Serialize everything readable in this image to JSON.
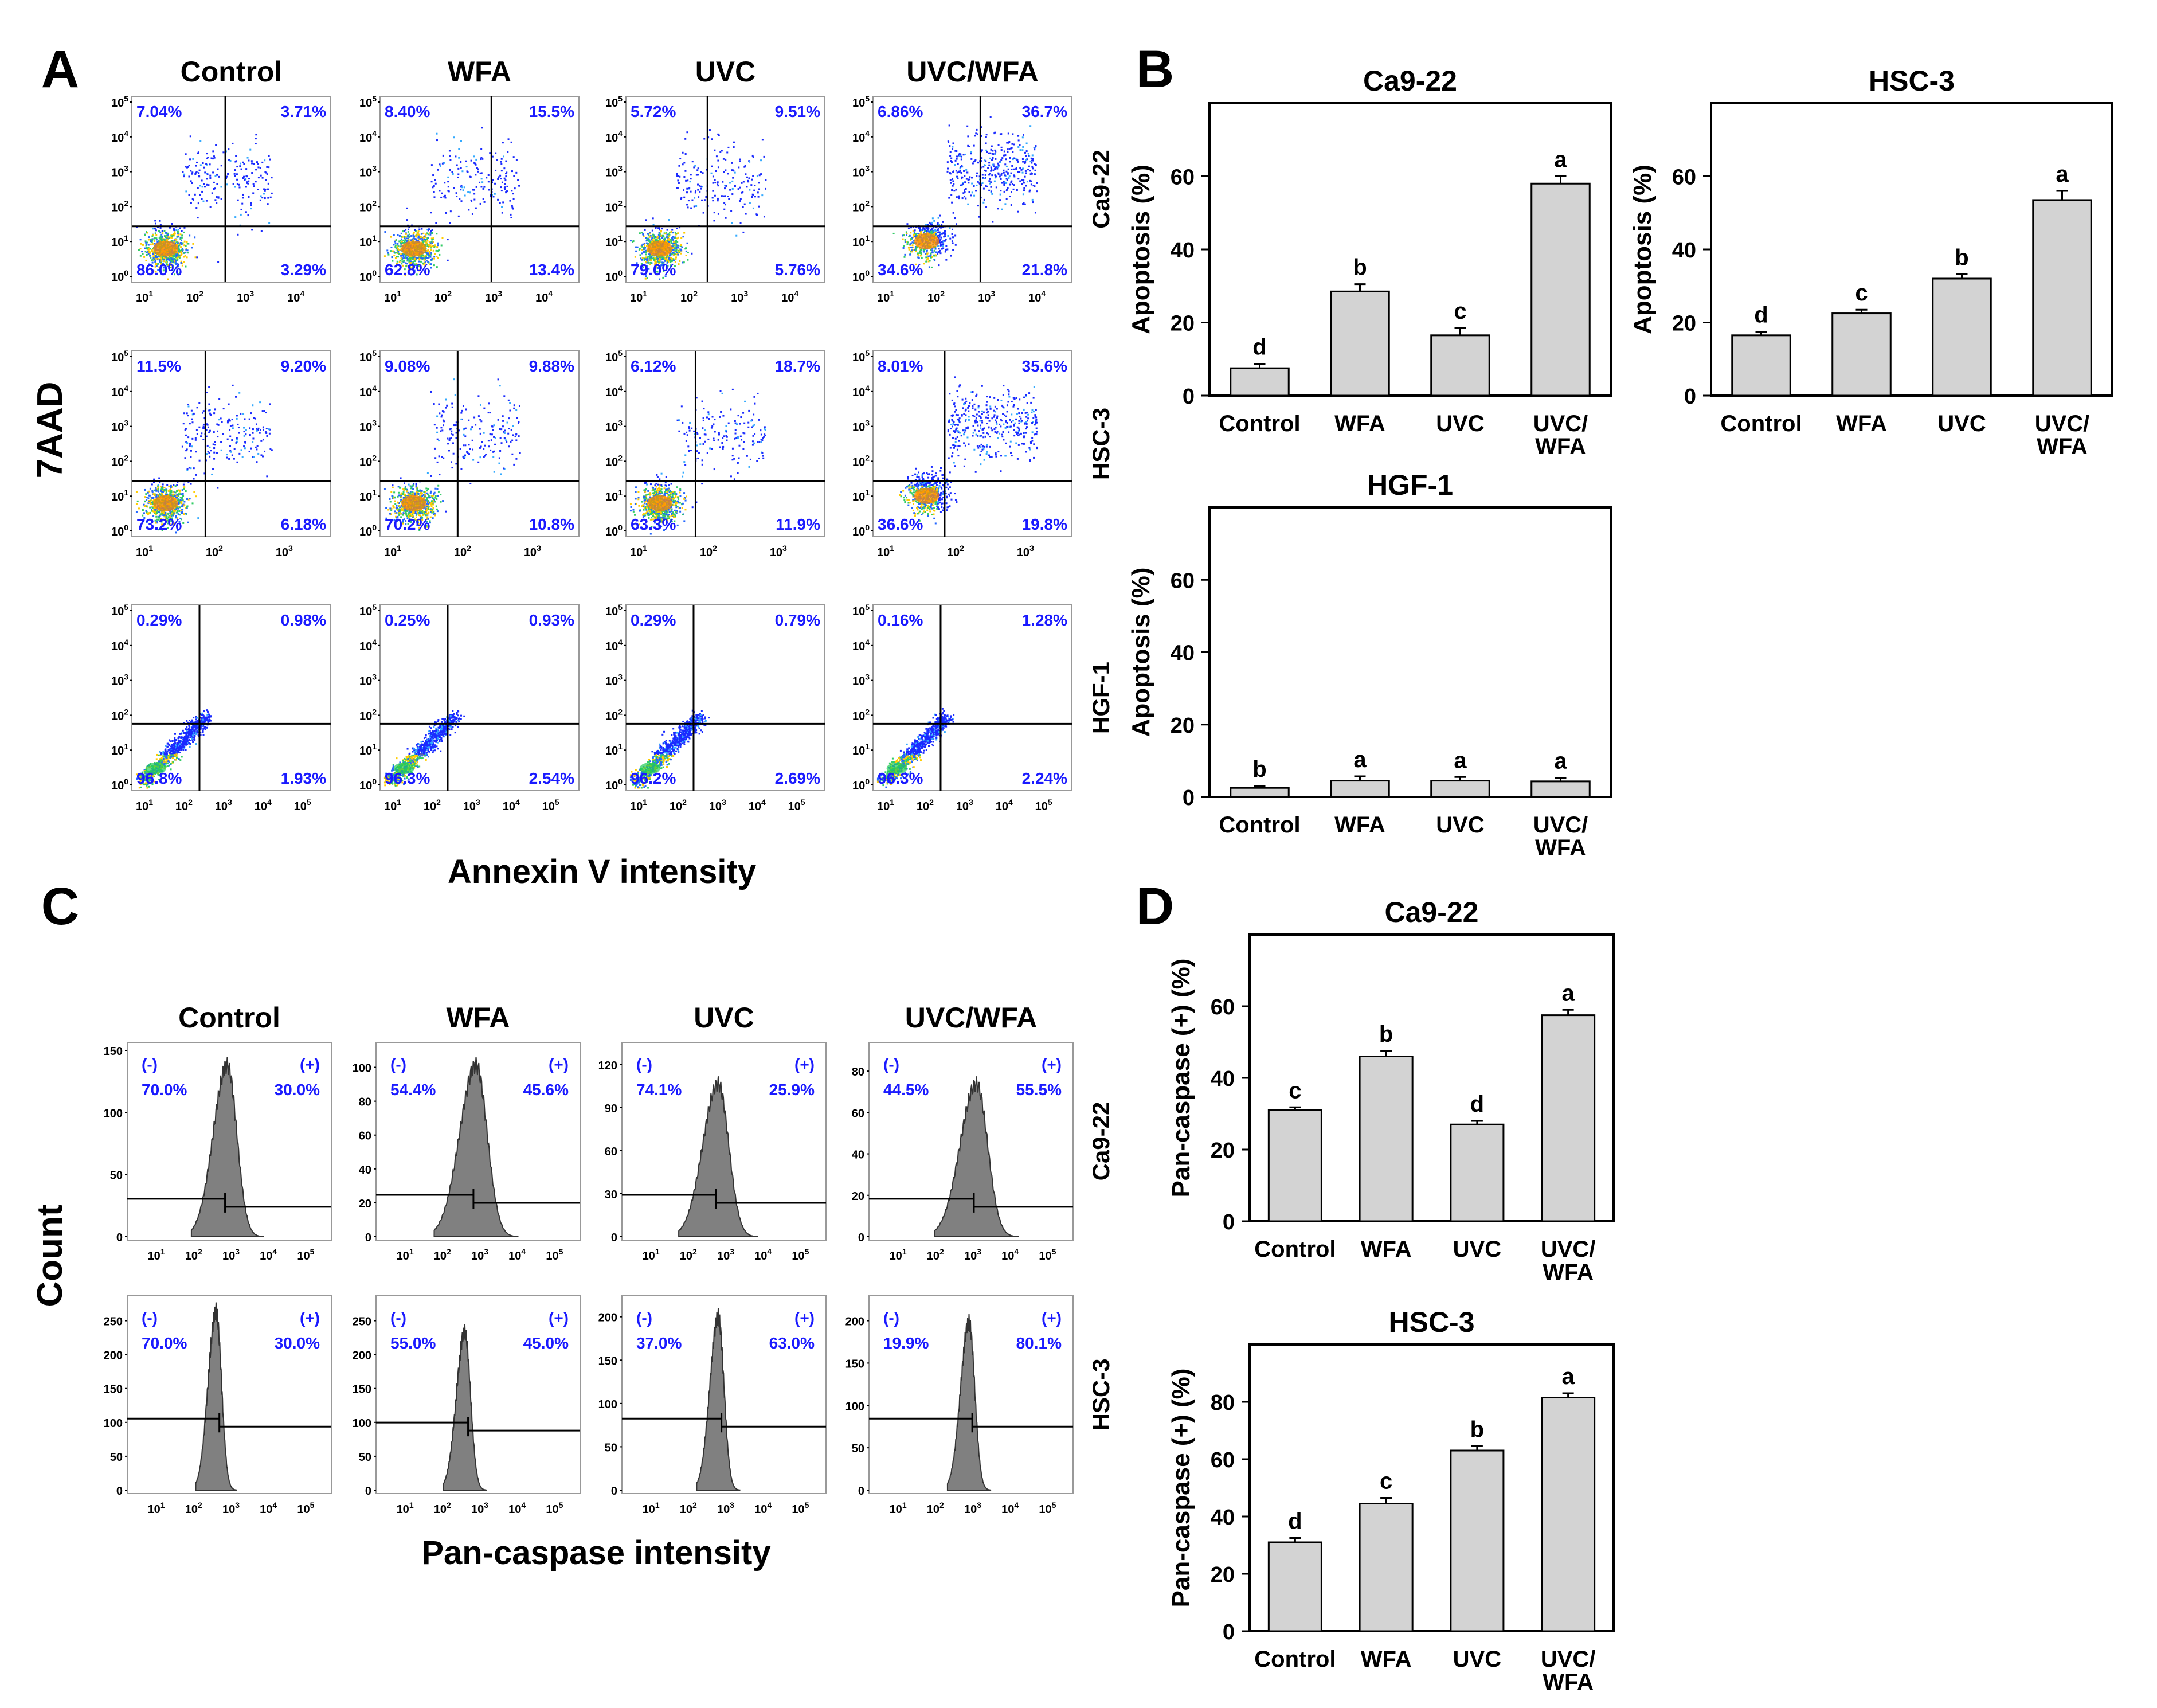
{
  "figure": {
    "panel_labels": [
      "A",
      "B",
      "C",
      "D"
    ],
    "colors": {
      "quadrant_text": "#1a1aff",
      "bar_fill": "#d3d3d3",
      "histogram_fill": "#808080",
      "axis": "#000000"
    }
  },
  "panel_a": {
    "columns": [
      "Control",
      "WFA",
      "UVC",
      "UVC/WFA"
    ],
    "row_labels": [
      "Ca9-22",
      "HSC-3",
      "HGF-1"
    ],
    "ylabel": "7AAD",
    "xlabel": "Annexin V intensity",
    "quadrants": [
      [
        {
          "ul": "7.04%",
          "ur": "3.71%",
          "ll": "86.0%",
          "lr": "3.29%"
        },
        {
          "ul": "8.40%",
          "ur": "15.5%",
          "ll": "62.8%",
          "lr": "13.4%"
        },
        {
          "ul": "5.72%",
          "ur": "9.51%",
          "ll": "79.0%",
          "lr": "5.76%"
        },
        {
          "ul": "6.86%",
          "ur": "36.7%",
          "ll": "34.6%",
          "lr": "21.8%"
        }
      ],
      [
        {
          "ul": "11.5%",
          "ur": "9.20%",
          "ll": "73.2%",
          "lr": "6.18%"
        },
        {
          "ul": "9.08%",
          "ur": "9.88%",
          "ll": "70.2%",
          "lr": "10.8%"
        },
        {
          "ul": "6.12%",
          "ur": "18.7%",
          "ll": "63.3%",
          "lr": "11.9%"
        },
        {
          "ul": "8.01%",
          "ur": "35.6%",
          "ll": "36.6%",
          "lr": "19.8%"
        }
      ],
      [
        {
          "ul": "0.29%",
          "ur": "0.98%",
          "ll": "96.8%",
          "lr": "1.93%"
        },
        {
          "ul": "0.25%",
          "ur": "0.93%",
          "ll": "96.3%",
          "lr": "2.54%"
        },
        {
          "ul": "0.29%",
          "ur": "0.79%",
          "ll": "96.2%",
          "lr": "2.69%"
        },
        {
          "ul": "0.16%",
          "ur": "1.28%",
          "ll": "96.3%",
          "lr": "2.24%"
        }
      ]
    ],
    "y_decades": [
      "0",
      "1",
      "2",
      "3",
      "4",
      "5"
    ],
    "x_decades_by_row": [
      [
        "1",
        "2",
        "3",
        "4"
      ],
      [
        "1",
        "2",
        "3"
      ],
      [
        "1",
        "2",
        "3",
        "4",
        "5"
      ]
    ]
  },
  "panel_c": {
    "columns": [
      "Control",
      "WFA",
      "UVC",
      "UVC/WFA"
    ],
    "row_labels": [
      "Ca9-22",
      "HSC-3"
    ],
    "ylabel": "Count",
    "xlabel": "Pan-caspase intensity",
    "x_decades": [
      "1",
      "2",
      "3",
      "4",
      "5"
    ],
    "neg_label": "(-)",
    "pos_label": "(+)",
    "histograms": [
      [
        {
          "neg": "70.0%",
          "pos": "30.0%",
          "yticks": [
            0,
            50,
            100,
            150
          ],
          "ymax": 150,
          "peak_decade": 2.4,
          "peak_frac": 0.92,
          "width": 0.3,
          "gate_frac": 0.18
        },
        {
          "neg": "54.4%",
          "pos": "45.6%",
          "yticks": [
            0,
            20,
            40,
            60,
            80,
            100
          ],
          "ymax": 110,
          "peak_decade": 2.4,
          "peak_frac": 0.92,
          "width": 0.35,
          "gate_frac": 0.2
        },
        {
          "neg": "74.1%",
          "pos": "25.9%",
          "yticks": [
            0,
            30,
            60,
            90,
            120
          ],
          "ymax": 130,
          "peak_decade": 2.3,
          "peak_frac": 0.82,
          "width": 0.33,
          "gate_frac": 0.2
        },
        {
          "neg": "44.5%",
          "pos": "55.5%",
          "yticks": [
            0,
            20,
            40,
            60,
            80
          ],
          "ymax": 90,
          "peak_decade": 2.6,
          "peak_frac": 0.82,
          "width": 0.35,
          "gate_frac": 0.18
        }
      ],
      [
        {
          "neg": "70.0%",
          "pos": "30.0%",
          "yticks": [
            0,
            50,
            100,
            150,
            200,
            250
          ],
          "ymax": 275,
          "peak_decade": 2.1,
          "peak_frac": 0.96,
          "width": 0.17,
          "gate_frac": 0.35
        },
        {
          "neg": "55.0%",
          "pos": "45.0%",
          "yticks": [
            0,
            50,
            100,
            150,
            200,
            250
          ],
          "ymax": 275,
          "peak_decade": 2.1,
          "peak_frac": 0.85,
          "width": 0.18,
          "gate_frac": 0.33
        },
        {
          "neg": "37.0%",
          "pos": "63.0%",
          "yticks": [
            0,
            50,
            100,
            150,
            200
          ],
          "ymax": 215,
          "peak_decade": 2.3,
          "peak_frac": 0.93,
          "width": 0.18,
          "gate_frac": 0.35
        },
        {
          "neg": "19.9%",
          "pos": "80.1%",
          "yticks": [
            0,
            50,
            100,
            150,
            200
          ],
          "ymax": 220,
          "peak_decade": 2.4,
          "peak_frac": 0.9,
          "width": 0.18,
          "gate_frac": 0.35
        }
      ]
    ]
  },
  "chart_data": [
    {
      "type": "bar",
      "panel": "B",
      "title": "Ca9-22",
      "categories": [
        "Control",
        "WFA",
        "UVC",
        "UVC/WFA"
      ],
      "values": [
        7.5,
        28.5,
        16.5,
        58
      ],
      "errors": [
        1.2,
        2.0,
        2.0,
        2.0
      ],
      "letters": [
        "d",
        "b",
        "c",
        "a"
      ],
      "xlabel": "",
      "ylabel": "Apoptosis (%)",
      "ylim": [
        0,
        80
      ],
      "yticks": [
        0,
        20,
        40,
        60
      ]
    },
    {
      "type": "bar",
      "panel": "B",
      "title": "HSC-3",
      "categories": [
        "Control",
        "WFA",
        "UVC",
        "UVC/WFA"
      ],
      "values": [
        16.5,
        22.5,
        32,
        53.5
      ],
      "errors": [
        1.0,
        1.0,
        1.2,
        2.5
      ],
      "letters": [
        "d",
        "c",
        "b",
        "a"
      ],
      "xlabel": "",
      "ylabel": "Apoptosis (%)",
      "ylim": [
        0,
        80
      ],
      "yticks": [
        0,
        20,
        40,
        60
      ]
    },
    {
      "type": "bar",
      "panel": "B",
      "title": "HGF-1",
      "categories": [
        "Control",
        "WFA",
        "UVC",
        "UVC/WFA"
      ],
      "values": [
        2.5,
        4.5,
        4.5,
        4.3
      ],
      "errors": [
        0.5,
        1.2,
        1.0,
        1.0
      ],
      "letters": [
        "b",
        "a",
        "a",
        "a"
      ],
      "xlabel": "",
      "ylabel": "Apoptosis (%)",
      "ylim": [
        0,
        80
      ],
      "yticks": [
        0,
        20,
        40,
        60
      ]
    },
    {
      "type": "bar",
      "panel": "D",
      "title": "Ca9-22",
      "categories": [
        "Control",
        "WFA",
        "UVC",
        "UVC/WFA"
      ],
      "values": [
        31,
        46,
        27,
        57.5
      ],
      "errors": [
        0.8,
        1.5,
        1.0,
        1.5
      ],
      "letters": [
        "c",
        "b",
        "d",
        "a"
      ],
      "xlabel": "",
      "ylabel": "Pan-caspase (+) (%)",
      "ylim": [
        0,
        80
      ],
      "yticks": [
        0,
        20,
        40,
        60
      ]
    },
    {
      "type": "bar",
      "panel": "D",
      "title": "HSC-3",
      "categories": [
        "Control",
        "WFA",
        "UVC",
        "UVC/WFA"
      ],
      "values": [
        31,
        44.5,
        63,
        81.5
      ],
      "errors": [
        1.5,
        2.0,
        1.5,
        1.5
      ],
      "letters": [
        "d",
        "c",
        "b",
        "a"
      ],
      "xlabel": "",
      "ylabel": "Pan-caspase (+) (%)",
      "ylim": [
        0,
        100
      ],
      "yticks": [
        0,
        20,
        40,
        60,
        80
      ]
    }
  ]
}
